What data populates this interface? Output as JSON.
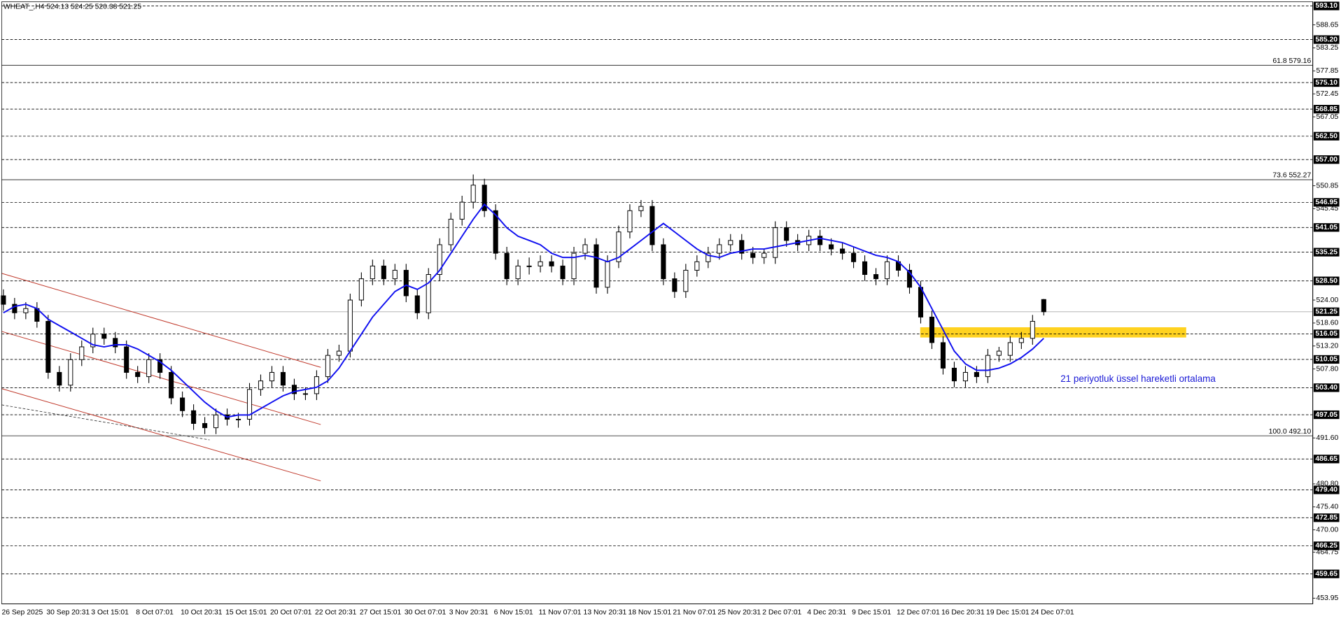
{
  "chart_data": {
    "type": "candlestick",
    "title": "WHEAT_,H4 524.13 524.25 520.38 521.25",
    "categories": [
      "26 Sep 2025",
      null,
      null,
      null,
      "30 Sep 20:31",
      null,
      null,
      null,
      "3 Oct 15:01",
      null,
      null,
      null,
      "8 Oct 07:01",
      null,
      null,
      null,
      "10 Oct 20:31",
      null,
      null,
      null,
      "15 Oct 15:01",
      null,
      null,
      null,
      "20 Oct 07:01",
      null,
      null,
      null,
      "22 Oct 20:31",
      null,
      null,
      null,
      "27 Oct 15:01",
      null,
      null,
      null,
      "30 Oct 07:01",
      null,
      null,
      null,
      "3 Nov 20:31",
      null,
      null,
      null,
      "6 Nov 15:01",
      null,
      null,
      null,
      "11 Nov 07:01",
      null,
      null,
      null,
      "13 Nov 20:31",
      null,
      null,
      null,
      "18 Nov 15:01",
      null,
      null,
      null,
      "21 Nov 07:01",
      null,
      null,
      null,
      "25 Nov 20:31",
      null,
      null,
      null,
      "2 Dec 07:01",
      null,
      null,
      null,
      "4 Dec 20:31",
      null,
      null,
      null,
      "9 Dec 15:01",
      null,
      null,
      null,
      "12 Dec 07:01",
      null,
      null,
      null,
      "16 Dec 20:31",
      null,
      null,
      null,
      "19 Dec 15:01",
      null,
      null,
      null,
      "24 Dec 07:01",
      null
    ],
    "open": [
      525,
      523,
      521,
      522,
      519,
      507,
      504,
      510,
      513,
      516,
      515,
      513,
      507,
      506,
      510,
      507,
      501,
      498,
      495,
      494,
      497,
      496,
      496,
      503,
      505,
      507,
      504,
      502,
      502,
      506,
      511,
      512,
      524,
      529,
      532,
      529,
      531,
      525,
      521,
      530,
      537,
      543,
      547,
      551,
      545,
      535,
      529,
      532,
      532,
      533,
      532,
      529,
      535,
      537,
      527,
      533,
      540,
      545,
      546,
      537,
      529,
      526,
      531,
      533,
      535,
      537,
      538,
      535,
      534,
      534,
      541,
      538,
      537,
      539,
      537,
      536,
      535,
      533,
      530,
      529,
      533,
      531,
      527,
      520,
      514,
      508,
      505,
      507,
      506,
      511,
      511,
      514,
      515,
      524.13
    ],
    "high": [
      526.5,
      524.5,
      523.5,
      523.5,
      520.5,
      508.5,
      511.5,
      514.5,
      517.5,
      517.5,
      516.5,
      514.5,
      508.5,
      511.5,
      511.5,
      508.5,
      502.5,
      499.5,
      496.5,
      498.5,
      498.5,
      497.5,
      504.5,
      506.5,
      508.5,
      508.5,
      505.5,
      503.5,
      507.5,
      512.5,
      513.5,
      525.5,
      530.5,
      533.5,
      533.5,
      532.5,
      532.5,
      526.5,
      531.5,
      538.5,
      544.5,
      548.5,
      553.5,
      552.5,
      546.5,
      536.5,
      533.5,
      534,
      534.5,
      534.5,
      533.5,
      536.5,
      538.5,
      538.5,
      534.5,
      541.5,
      546.5,
      547.5,
      547.5,
      538.5,
      530.5,
      532.5,
      534.5,
      536.5,
      538.5,
      539.5,
      539.5,
      536.5,
      536,
      542.5,
      542.5,
      539.5,
      540.5,
      540.5,
      538.5,
      537.5,
      536.5,
      534.5,
      531.5,
      534.5,
      534.5,
      532.5,
      528.5,
      521.5,
      515.5,
      509.5,
      508.5,
      508.5,
      512.5,
      513,
      515.5,
      516.5,
      520.5,
      524.25
    ],
    "low": [
      521.5,
      519.5,
      519.5,
      517.5,
      505.5,
      502.5,
      502.5,
      508.5,
      511.5,
      513.5,
      511.5,
      505.5,
      504.5,
      504.5,
      505.5,
      499.5,
      496.5,
      493.5,
      492.5,
      492.5,
      494.5,
      494,
      494.5,
      501.5,
      503.5,
      502.5,
      500.5,
      500.5,
      500.5,
      504.5,
      509.5,
      510.5,
      522.5,
      527.5,
      527.5,
      527.5,
      523.5,
      519.5,
      519.5,
      528.5,
      535.5,
      541.5,
      545.5,
      543.5,
      533.5,
      527.5,
      527.5,
      530,
      530.5,
      530.5,
      527.5,
      527.5,
      533.5,
      525.5,
      525.5,
      531.5,
      538.5,
      543.5,
      535.5,
      527.5,
      524.5,
      524.5,
      529.5,
      531.5,
      533.5,
      535.5,
      533.5,
      532.5,
      532.5,
      532.5,
      536.5,
      535.5,
      535.5,
      535.5,
      534.5,
      533.5,
      531.5,
      528.5,
      527.5,
      527.5,
      529.5,
      525.5,
      518.5,
      512.5,
      506.5,
      503.5,
      503.5,
      504.5,
      504.5,
      509.5,
      509.5,
      512.5,
      513.5,
      520.38
    ],
    "close": [
      523,
      521,
      522,
      519,
      507,
      504,
      510,
      513,
      516,
      515,
      513,
      507,
      506,
      510,
      507,
      501,
      498,
      495,
      494,
      497,
      496,
      496,
      503,
      505,
      507,
      504,
      502,
      502,
      506,
      511,
      512,
      524,
      529,
      532,
      529,
      531,
      525,
      521,
      530,
      537,
      543,
      547,
      551,
      545,
      535,
      529,
      532,
      532,
      533,
      532,
      529,
      535,
      537,
      527,
      533,
      540,
      545,
      546,
      537,
      529,
      526,
      531,
      533,
      535,
      537,
      538,
      535,
      534,
      535,
      541,
      538,
      537,
      539,
      537,
      536,
      535,
      533,
      530,
      529,
      533,
      531,
      527,
      520,
      514,
      508,
      505,
      507,
      506,
      511,
      512,
      514,
      515,
      519,
      521.25
    ],
    "candle_color": "#000000",
    "ema": {
      "color": "#1010f0",
      "values": [
        521,
        522.5,
        523,
        522,
        519.5,
        518,
        516.5,
        515,
        513.5,
        513,
        513.5,
        513.5,
        512.5,
        511,
        509.5,
        507.5,
        505,
        502.5,
        500,
        498,
        496.5,
        497,
        497,
        498.5,
        500,
        501.5,
        502.5,
        503,
        503.5,
        505,
        508,
        512,
        516,
        520,
        523,
        526,
        527.5,
        526.5,
        528,
        531,
        535,
        539,
        543,
        546.5,
        544,
        541,
        539,
        538,
        537,
        535,
        534,
        534,
        534.5,
        534,
        533,
        534,
        536,
        538,
        540,
        542,
        540,
        538,
        536,
        534.5,
        534,
        535,
        535.5,
        536,
        536,
        536.5,
        537,
        537.5,
        538,
        538.5,
        538,
        537.5,
        536.5,
        535.5,
        534.5,
        534,
        533,
        530.5,
        527,
        522,
        517,
        512,
        509,
        507.5,
        507.5,
        508,
        509,
        510.5,
        512.5,
        515
      ]
    },
    "annotation": "21 periyotluk üssel hareketli ortalama",
    "annotation_color": "#1a1ad6",
    "zone": {
      "range": [
        515.2,
        517.6
      ],
      "color": "#ffd21f"
    },
    "current_price": {
      "value": 521.25,
      "label": "521.25"
    },
    "levels": [
      {
        "value": 593.1,
        "label": "593.10"
      },
      {
        "value": 585.2,
        "label": "585.20"
      },
      {
        "value": 575.1,
        "label": "575.10"
      },
      {
        "value": 568.85,
        "label": "568.85"
      },
      {
        "value": 562.5,
        "label": "562.50"
      },
      {
        "value": 557,
        "label": "557.00"
      },
      {
        "value": 546.95,
        "label": "546.95"
      },
      {
        "value": 541.05,
        "label": "541.05"
      },
      {
        "value": 535.25,
        "label": "535.25"
      },
      {
        "value": 528.5,
        "label": "528.50"
      },
      {
        "value": 516.05,
        "label": "516.05"
      },
      {
        "value": 510.05,
        "label": "510.05"
      },
      {
        "value": 503.4,
        "label": "503.40"
      },
      {
        "value": 497.05,
        "label": "497.05"
      },
      {
        "value": 486.65,
        "label": "486.65"
      },
      {
        "value": 479.4,
        "label": "479.40"
      },
      {
        "value": 472.85,
        "label": "472.85"
      },
      {
        "value": 466.25,
        "label": "466.25"
      },
      {
        "value": 459.65,
        "label": "459.65"
      }
    ],
    "fib_levels": [
      {
        "value": 579.16,
        "label": "61.8 579.16"
      },
      {
        "value": 552.27,
        "label": "73.6 552.27"
      },
      {
        "value": 492.1,
        "label": "100.0 492.10"
      }
    ],
    "ylim": [
      452.6,
      594.5
    ],
    "yticks": [
      {
        "value": 588.65,
        "label": "588.65"
      },
      {
        "value": 583.25,
        "label": "583.25"
      },
      {
        "value": 577.85,
        "label": "577.85"
      },
      {
        "value": 572.45,
        "label": "572.45"
      },
      {
        "value": 567.05,
        "label": "567.05"
      },
      {
        "value": 550.85,
        "label": "550.85"
      },
      {
        "value": 545.45,
        "label": "545.45"
      },
      {
        "value": 524,
        "label": "524.00"
      },
      {
        "value": 518.6,
        "label": "518.60"
      },
      {
        "value": 513.2,
        "label": "513.20"
      },
      {
        "value": 507.8,
        "label": "507.80"
      },
      {
        "value": 491.6,
        "label": "491.60"
      },
      {
        "value": 480.8,
        "label": "480.80"
      },
      {
        "value": 475.4,
        "label": "475.40"
      },
      {
        "value": 470,
        "label": "470.00"
      },
      {
        "value": 464.75,
        "label": "464.75"
      },
      {
        "value": 453.95,
        "label": "453.95"
      }
    ]
  }
}
